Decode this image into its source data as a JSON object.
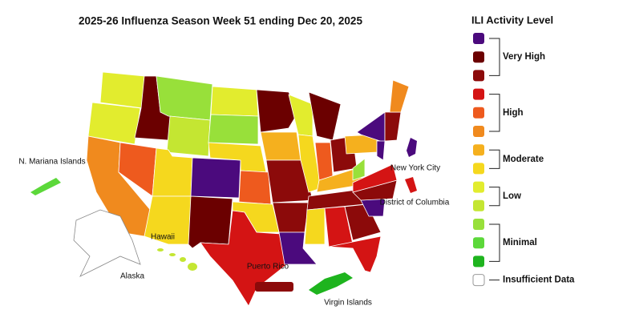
{
  "header": {
    "title": "2025-26 Influenza Season Week 51 ending Dec 20, 2025"
  },
  "legend": {
    "title": "ILI Activity Level",
    "levels": [
      {
        "label": "Very High",
        "colors": [
          "#4b0a7d",
          "#6b0000",
          "#8c0a0a"
        ]
      },
      {
        "label": "High",
        "colors": [
          "#d41414",
          "#ee5a1e",
          "#f08a1e"
        ]
      },
      {
        "label": "Moderate",
        "colors": [
          "#f5b01e",
          "#f5d81e"
        ]
      },
      {
        "label": "Low",
        "colors": [
          "#e2ec2e",
          "#c4e632"
        ]
      },
      {
        "label": "Minimal",
        "colors": [
          "#98e03a",
          "#5cd83a",
          "#1eb41e"
        ]
      },
      {
        "label": "Insufficient Data",
        "colors": [
          "#ffffff"
        ]
      }
    ]
  },
  "map": {
    "labels": [
      "N. Mariana Islands",
      "New York City",
      "District of Columbia",
      "Hawaii",
      "Alaska",
      "Puerto Rico",
      "Virgin Islands"
    ]
  }
}
